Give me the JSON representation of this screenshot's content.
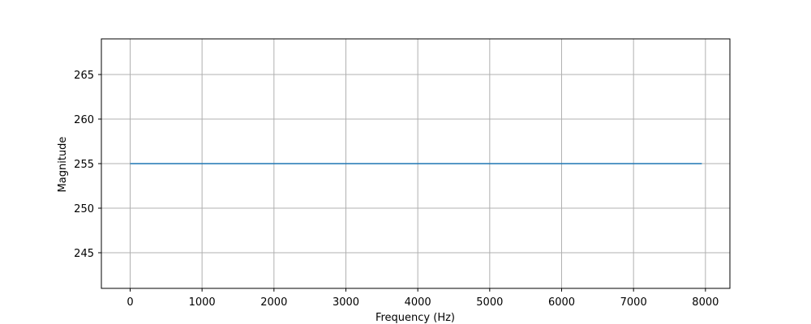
{
  "chart_data": {
    "type": "line",
    "title": "",
    "xlabel": "Frequency (Hz)",
    "ylabel": "Magnitude",
    "xlim": [
      -400,
      8340
    ],
    "ylim": [
      241,
      269
    ],
    "x_ticks": [
      0,
      1000,
      2000,
      3000,
      4000,
      5000,
      6000,
      7000,
      8000
    ],
    "y_ticks": [
      245,
      250,
      255,
      260,
      265
    ],
    "grid": true,
    "legend": "none",
    "series": [
      {
        "x": [
          0,
          7950
        ],
        "values": [
          255,
          255
        ],
        "color": "#1f77b4"
      }
    ]
  }
}
